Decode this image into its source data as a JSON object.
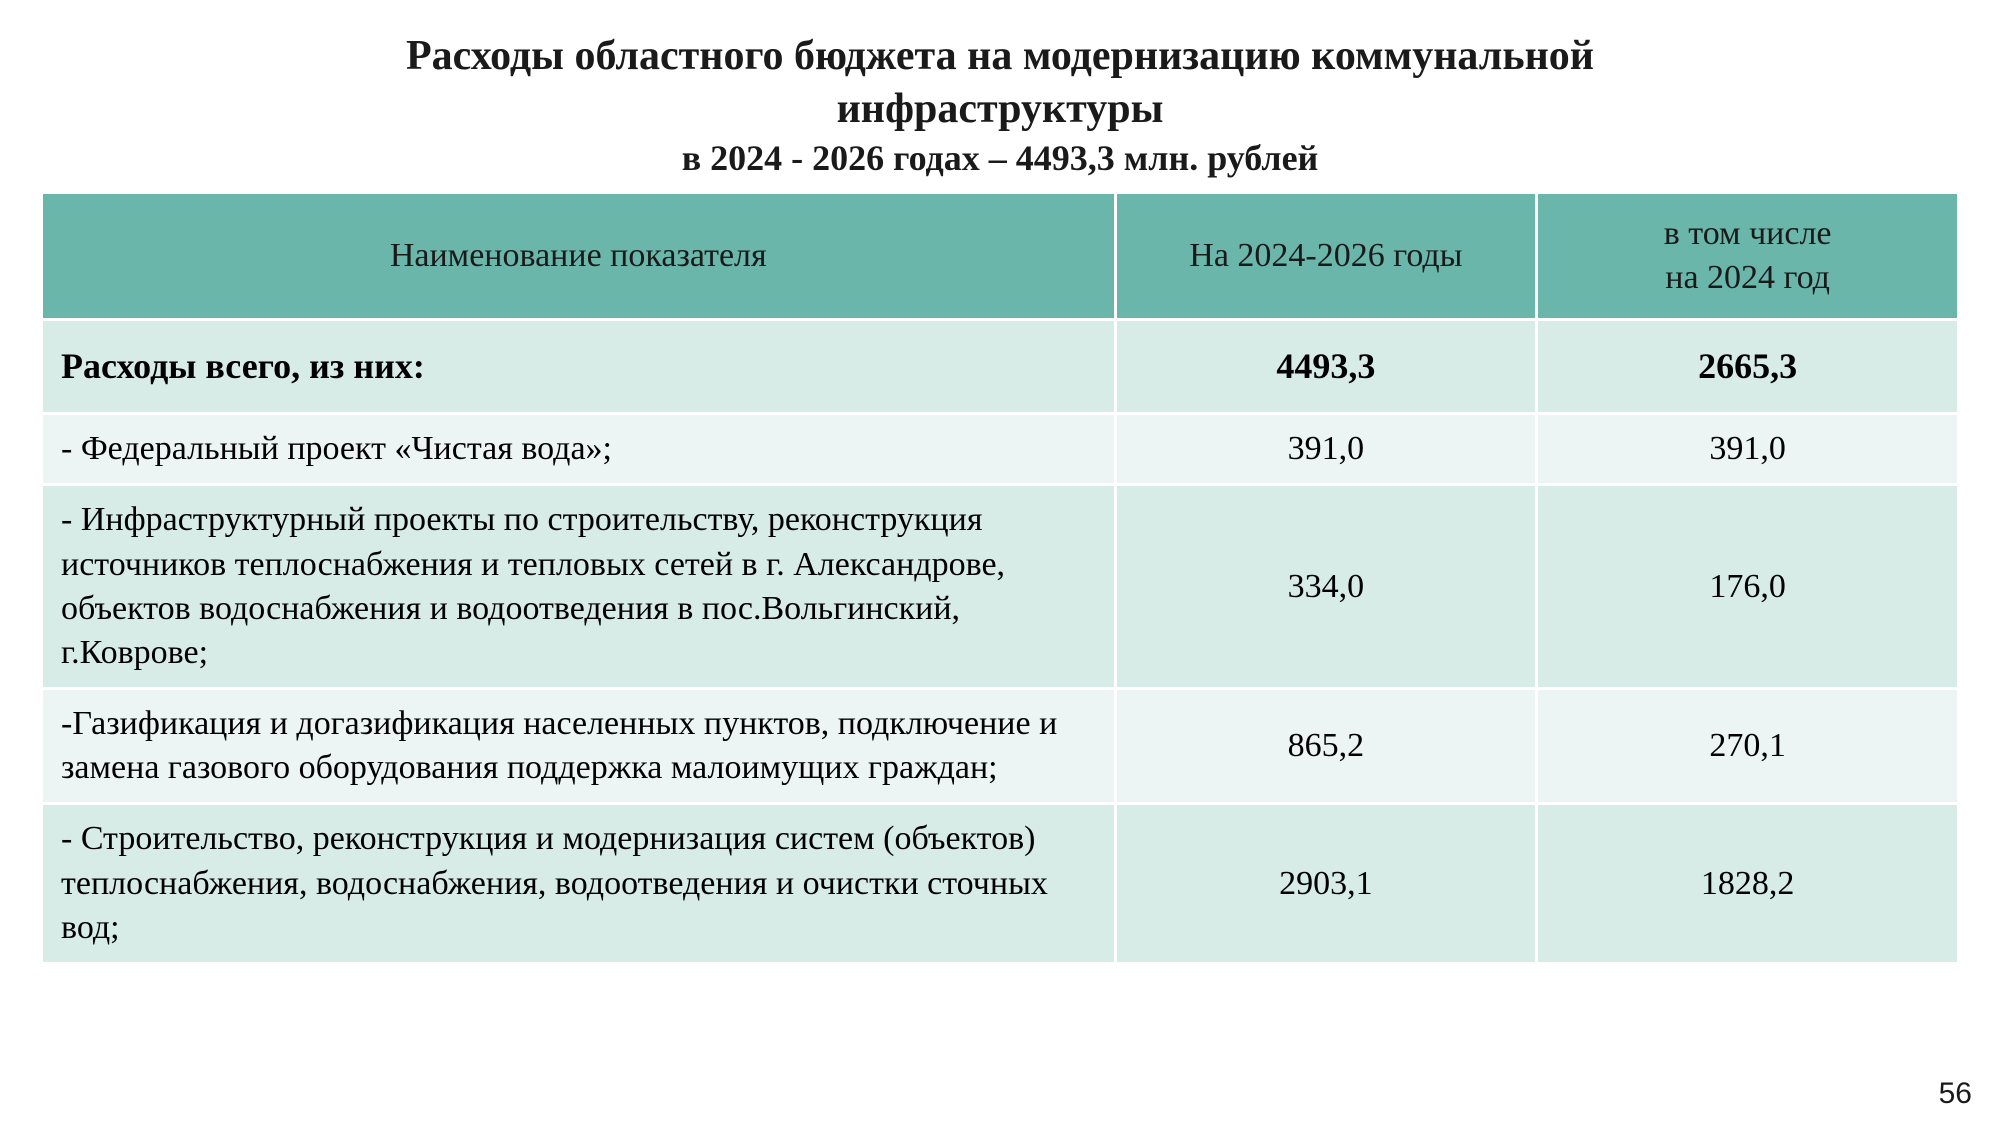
{
  "title": {
    "line1": "Расходы областного бюджета на модернизацию коммунальной",
    "line2": "инфраструктуры",
    "subtitle": "в 2024 - 2026 годах – 4493,3 млн. рублей"
  },
  "table": {
    "type": "table",
    "header_bg": "#6ab6aa",
    "row_even_bg": "#ecf5f3",
    "row_odd_bg": "#d7ece7",
    "border_color": "#ffffff",
    "text_color": "#1a1a1a",
    "header_fontsize": 34,
    "cell_fontsize": 34,
    "columns": [
      {
        "label": "Наименование показателя",
        "align": "left"
      },
      {
        "label": "На 2024-2026 годы",
        "align": "center"
      },
      {
        "label_line1": "в том числе",
        "label_line2": "на 2024 год",
        "align": "center"
      }
    ],
    "total_row": {
      "label": "Расходы всего, из них:",
      "period": "4493,3",
      "year": "2665,3"
    },
    "rows": [
      {
        "label": " - Федеральный проект «Чистая вода»;",
        "period": "391,0",
        "year": "391,0"
      },
      {
        "label": " - Инфраструктурный проекты по строительству, реконструкция источников теплоснабжения и тепловых сетей в г. Александрове, объектов водоснабжения и водоотведения в пос.Вольгинский, г.Коврове;",
        "period": "334,0",
        "year": "176,0"
      },
      {
        "label": " -Газификация и догазификация населенных пунктов, подключение и замена газового оборудования поддержка малоимущих граждан;",
        "period": "865,2",
        "year": "270,1"
      },
      {
        "label": " - Строительство, реконструкция и модернизация систем (объектов) теплоснабжения, водоснабжения, водоотведения и очистки сточных вод;",
        "period": "2903,1",
        "year": "1828,2"
      }
    ]
  },
  "page_number": "56"
}
